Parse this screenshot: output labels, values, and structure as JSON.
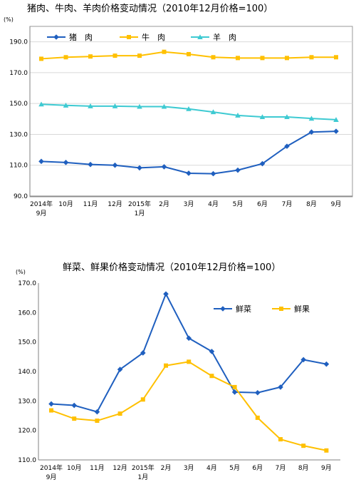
{
  "chart_data": [
    {
      "type": "line",
      "title": "猪肉、牛肉、羊肉价格变动情况（2010年12月价格=100）",
      "unit": "(%)",
      "categories": [
        [
          "2014年",
          "9月"
        ],
        [
          "10月"
        ],
        [
          "11月"
        ],
        [
          "12月"
        ],
        [
          "2015年",
          "1月"
        ],
        [
          "2月"
        ],
        [
          "3月"
        ],
        [
          "4月"
        ],
        [
          "5月"
        ],
        [
          "6月"
        ],
        [
          "7月"
        ],
        [
          "8月"
        ],
        [
          "9月"
        ]
      ],
      "ylim": [
        90,
        200
      ],
      "yticks": [
        "90.0",
        "110.0",
        "130.0",
        "150.0",
        "170.0",
        "190.0"
      ],
      "grid": true,
      "legend_position": "top",
      "series": [
        {
          "name": "猪　肉",
          "color": "#1f5fbf",
          "marker": "diamond",
          "values": [
            112.5,
            111.8,
            110.5,
            110.0,
            108.3,
            109.0,
            104.8,
            104.5,
            106.8,
            111.0,
            122.3,
            131.5,
            132.0
          ]
        },
        {
          "name": "牛　肉",
          "color": "#ffc000",
          "marker": "square",
          "values": [
            179.0,
            180.0,
            180.5,
            181.0,
            181.0,
            183.5,
            182.0,
            180.0,
            179.5,
            179.5,
            179.5,
            180.0,
            180.0
          ]
        },
        {
          "name": "羊　肉",
          "color": "#3ecad2",
          "marker": "triangle",
          "values": [
            149.5,
            148.8,
            148.3,
            148.3,
            148.0,
            148.0,
            146.5,
            144.5,
            142.3,
            141.3,
            141.3,
            140.3,
            139.5
          ]
        }
      ]
    },
    {
      "type": "line",
      "title": "鲜菜、鲜果价格变动情况（2010年12月价格=100）",
      "unit": "(%)",
      "categories": [
        [
          "2014年",
          "9月"
        ],
        [
          "10月"
        ],
        [
          "11月"
        ],
        [
          "12月"
        ],
        [
          "2015年",
          "1月"
        ],
        [
          "2月"
        ],
        [
          "3月"
        ],
        [
          "4月"
        ],
        [
          "5月"
        ],
        [
          "6月"
        ],
        [
          "7月"
        ],
        [
          "8月"
        ],
        [
          "9月"
        ]
      ],
      "ylim": [
        110,
        170
      ],
      "yticks": [
        "110.0",
        "120.0",
        "130.0",
        "140.0",
        "150.0",
        "160.0",
        "170.0"
      ],
      "grid": false,
      "legend_position": "right",
      "series": [
        {
          "name": "鲜菜",
          "color": "#1f5fbf",
          "marker": "diamond",
          "values": [
            129.0,
            128.5,
            126.3,
            140.7,
            146.3,
            166.3,
            151.3,
            146.8,
            133.0,
            132.8,
            134.7,
            144.0,
            142.5
          ]
        },
        {
          "name": "鲜果",
          "color": "#ffc000",
          "marker": "square",
          "values": [
            126.8,
            124.0,
            123.3,
            125.7,
            130.5,
            142.0,
            143.3,
            138.5,
            134.7,
            124.3,
            117.0,
            114.8,
            113.2
          ]
        }
      ]
    }
  ]
}
